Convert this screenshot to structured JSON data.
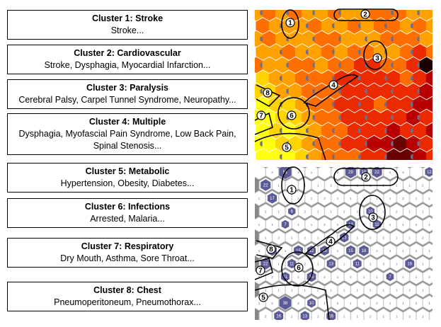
{
  "clusters": [
    {
      "title": "Cluster 1: Stroke",
      "terms": "Stroke..."
    },
    {
      "title": "Cluster 2: Cardiovascular",
      "terms": "Stroke, Dysphagia, Myocardial Infarction..."
    },
    {
      "title": "Cluster 3: Paralysis",
      "terms": "Cerebral Palsy, Carpel Tunnel Syndrome, Neuropathy..."
    },
    {
      "title": "Cluster 4: Multiple",
      "terms": "Dysphagia, Myofascial Pain Syndrome, Low Back Pain, Spinal Stenosis..."
    },
    {
      "title": "Cluster 5: Metabolic",
      "terms": "Hypertension, Obesity, Diabetes..."
    },
    {
      "title": "Cluster 6: Infections",
      "terms": "Arrested, Malaria..."
    },
    {
      "title": "Cluster 7: Respiratory",
      "terms": "Dry Mouth, Asthma, Sore Throat..."
    },
    {
      "title": "Cluster 8: Chest",
      "terms": "Pneumoperitoneum, Pneumothorax..."
    }
  ],
  "heatmap": {
    "levels": [
      [
        2,
        3,
        2,
        3,
        2,
        2,
        3,
        2,
        2,
        3,
        3,
        3,
        2,
        2
      ],
      [
        3,
        2,
        2,
        2,
        3,
        2,
        2,
        3,
        2,
        3,
        3,
        2,
        3,
        2
      ],
      [
        2,
        3,
        2,
        2,
        2,
        3,
        3,
        2,
        2,
        2,
        3,
        3,
        3,
        2
      ],
      [
        2,
        2,
        3,
        2,
        2,
        3,
        2,
        3,
        3,
        2,
        2,
        3,
        4,
        3
      ],
      [
        3,
        2,
        2,
        3,
        3,
        2,
        3,
        3,
        4,
        4,
        3,
        3,
        4,
        7
      ],
      [
        1,
        2,
        2,
        3,
        3,
        3,
        4,
        4,
        4,
        4,
        4,
        3,
        4,
        5
      ],
      [
        1,
        1,
        2,
        2,
        3,
        3,
        3,
        4,
        4,
        4,
        4,
        4,
        4,
        5
      ],
      [
        0,
        1,
        1,
        2,
        3,
        3,
        4,
        4,
        4,
        3,
        4,
        4,
        5,
        5
      ],
      [
        0,
        0,
        1,
        1,
        2,
        3,
        3,
        4,
        4,
        4,
        4,
        4,
        5,
        4
      ],
      [
        0,
        1,
        0,
        1,
        2,
        3,
        3,
        4,
        4,
        4,
        5,
        4,
        4,
        5
      ],
      [
        0,
        0,
        1,
        1,
        2,
        3,
        3,
        4,
        4,
        5,
        5,
        6,
        5,
        4
      ],
      [
        0,
        0,
        0,
        1,
        2,
        3,
        3,
        3,
        4,
        4,
        6,
        6,
        5,
        4
      ]
    ],
    "markers": [
      1,
      2,
      3,
      4,
      5,
      6,
      7,
      8
    ]
  },
  "hitmap": {
    "counts": [
      [
        null,
        2,
        51,
        3,
        1,
        null,
        4,
        29,
        10,
        22,
        1,
        2,
        null,
        12
      ],
      [
        22,
        1,
        2,
        1,
        1,
        2,
        2,
        1,
        1,
        2,
        1,
        1,
        2,
        1
      ],
      [
        1,
        17,
        3,
        1,
        2,
        2,
        1,
        1,
        2,
        1,
        1,
        2,
        1,
        1
      ],
      [
        2,
        1,
        6,
        2,
        1,
        1,
        2,
        1,
        10,
        1,
        2,
        1,
        1,
        2
      ],
      [
        1,
        1,
        7,
        1,
        1,
        2,
        1,
        13,
        2,
        11,
        1,
        1,
        2,
        1
      ],
      [
        1,
        2,
        1,
        2,
        1,
        1,
        13,
        1,
        1,
        2,
        1,
        1,
        2,
        1
      ],
      [
        1,
        15,
        1,
        15,
        12,
        13,
        1,
        15,
        18,
        2,
        3,
        1,
        2,
        1
      ],
      [
        22,
        1,
        11,
        2,
        1,
        13,
        1,
        11,
        1,
        3,
        1,
        16,
        1,
        2
      ],
      [
        1,
        2,
        11,
        1,
        15,
        2,
        1,
        2,
        1,
        1,
        7,
        1,
        1,
        2
      ],
      [
        2,
        1,
        1,
        1,
        2,
        1,
        1,
        1,
        2,
        1,
        1,
        2,
        1,
        1
      ],
      [
        1,
        2,
        38,
        2,
        10,
        1,
        2,
        1,
        1,
        2,
        1,
        1,
        2,
        1
      ],
      [
        2,
        16,
        1,
        13,
        1,
        16,
        1,
        1,
        2,
        1,
        1,
        2,
        1,
        1
      ]
    ],
    "markers": [
      1,
      2,
      3,
      4,
      5,
      6,
      7,
      8
    ]
  }
}
